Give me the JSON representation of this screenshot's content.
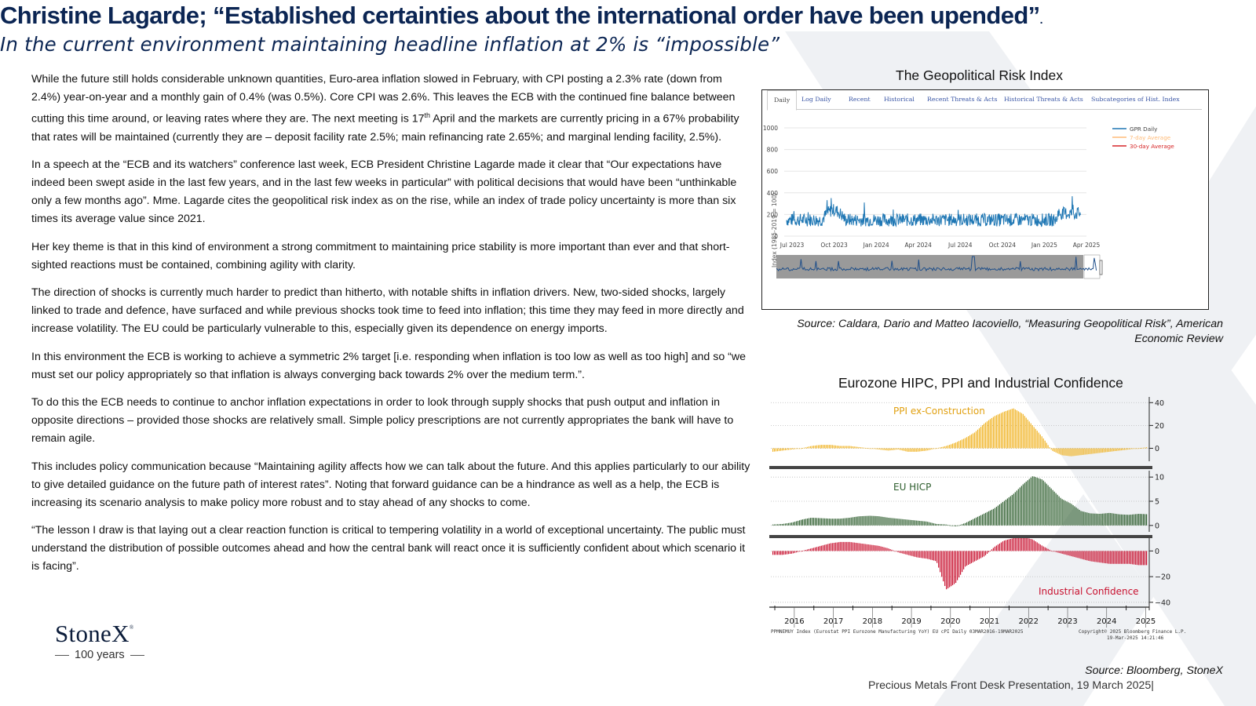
{
  "header": {
    "title": "Christine Lagarde; “Established certainties about the international order have been upended”",
    "title_dot": ".",
    "subtitle": "In the current environment maintaining headline inflation at 2% is “impossible”"
  },
  "body": {
    "p1_a": "While the future still holds considerable unknown quantities, Euro-area inflation slowed in February, with CPI posting a 2.3% rate (down from 2.4%)  year-on-year and a monthly gain of 0.4% (was 0.5%).  Core CPI was 2.6%.  This leaves the ECB with the continued fine balance between cutting this time around, or leaving rates where they are.  The next meeting is 17",
    "p1_sup": "th",
    "p1_b": " April and the markets are currently pricing in a 67% probability that rates will be maintained (currently they are – deposit facility rate 2.5%; main refinancing rate 2.65%; and marginal lending facility, 2.5%).",
    "p2": "In a speech at the “ECB and its watchers” conference last week, ECB President Christine Lagarde made it clear that “Our expectations have indeed been swept aside in the last few years, and in the last few weeks in particular” with political decisions that would have been “unthinkable only a few months ago”.   Mme. Lagarde cites the geopolitical risk index as on the rise, while an index of trade policy uncertainty is more than six times its average value since 2021.",
    "p3": "Her key theme is that in this kind of environment a strong commitment to maintaining price stability is more important than ever and that short-sighted reactions must be contained, combining agility with clarity.",
    "p4": "The direction of shocks is currently much harder to predict than hitherto, with notable shifts in inflation drivers.  New, two-sided shocks, largely linked to trade and defence, have surfaced and while previous shocks took time to feed into inflation; this time they may feed in more directly and increase volatility. The EU could be particularly vulnerable to this, especially given its dependence on energy imports.",
    "p5": "In this environment the ECB is working to achieve a symmetric 2% target [i.e. responding when inflation is too low as well as too high] and so “we must set our policy appropriately so that inflation is always converging back towards 2% over the medium term.”.",
    "p6": "To do this the ECB needs to continue to anchor inflation expectations in order to look through supply shocks that push output and inflation in opposite directions – provided those shocks are relatively small.  Simple policy prescriptions are not currently appropriates the bank will have to remain agile.",
    "p7": "This includes policy communication because “Maintaining agility affects how we can talk about the future. And this applies particularly to our ability to give detailed guidance on the future path of interest rates”.  Noting that forward guidance can be a hindrance as well as a help, the ECB is increasing its scenario analysis to make policy more robust and to stay ahead of any shocks to come.",
    "p8": "“The lesson I draw is that laying out a clear reaction function is critical to tempering volatility in a world of exceptional uncertainty. The public must understand the distribution of possible outcomes ahead and how the central bank will react once it is sufficiently confident about which scenario it is facing”."
  },
  "logo": {
    "word": "StoneX",
    "reg": "®",
    "sub": "100 years"
  },
  "gpr": {
    "title": "The Geopolitical Risk Index",
    "tabs": [
      "Daily",
      "Log Daily",
      "Recent",
      "Historical",
      "Recent Threats & Acts",
      "Historical Threats & Acts",
      "Subcategories of Hist. Index"
    ],
    "ylabel": "Index (1985-2019 = 100)",
    "yticks": [
      "1000",
      "800",
      "600",
      "400",
      "200",
      "0"
    ],
    "xticks": [
      "Jul 2023",
      "Oct 2023",
      "Jan 2024",
      "Apr 2024",
      "Jul 2024",
      "Oct 2024",
      "Jan 2025",
      "Apr 2025"
    ],
    "legend": [
      "GPR Daily",
      "7-day Average",
      "30-day Average"
    ],
    "colors": {
      "daily": "#1f77b4",
      "avg7": "#ffbb78",
      "avg30": "#d62728"
    },
    "source": "Source: Caldara, Dario and Matteo Iacoviello, “Measuring Geopolitical Risk”, American Economic Review"
  },
  "euro": {
    "title": "Eurozone HIPC, PPI and Industrial Confidence",
    "ppi_label": "PPI ex-Construction",
    "hicp_label": "EU HICP",
    "ic_label": "Industrial Confidence",
    "ppi_ticks": [
      "40",
      "20",
      "0"
    ],
    "hicp_ticks": [
      "10",
      "5",
      "0"
    ],
    "ic_ticks": [
      "0",
      "−20",
      "−40"
    ],
    "years": [
      "2016",
      "2017",
      "2018",
      "2019",
      "2020",
      "2021",
      "2022",
      "2023",
      "2024",
      "2025"
    ],
    "footnote_left": "PPMNEMUY Index (Eurostat PPI Eurozone Manufacturing YoY) EU cPI  Daily 03MAR2016-19MAR2025",
    "footnote_right1": "Copyright© 2025 Bloomberg Finance L.P.",
    "footnote_right2": "19-Mar-2025 14:21:46",
    "colors": {
      "ppi": "#f0b323",
      "hicp": "#2e5e2e",
      "ic": "#c8102e"
    },
    "source": "Source: Bloomberg, StoneX"
  },
  "footer": {
    "text": "Precious Metals Front Desk Presentation, 19 March 2025|"
  },
  "chart_data": [
    {
      "type": "line",
      "title": "The Geopolitical Risk Index",
      "ylabel": "Index (1985-2019 = 100)",
      "ylim": [
        0,
        1000
      ],
      "x_range": [
        "2023-07",
        "2025-04"
      ],
      "series": [
        {
          "name": "GPR Daily"
        },
        {
          "name": "7-day Average"
        },
        {
          "name": "30-day Average"
        }
      ],
      "legend": "top-right",
      "grid": true
    },
    {
      "type": "bar",
      "title": "Eurozone HIPC, PPI and Industrial Confidence",
      "categories": [
        "2016",
        "2017",
        "2018",
        "2019",
        "2020",
        "2021",
        "2022",
        "2023",
        "2024",
        "2025"
      ],
      "series": [
        {
          "name": "PPI ex-Construction",
          "values": [
            -2,
            3,
            3,
            1,
            -2,
            8,
            30,
            -2,
            -3,
            0
          ]
        },
        {
          "name": "EU HICP",
          "values": [
            0.5,
            1.5,
            1.8,
            1.2,
            0.3,
            2.6,
            8.5,
            5.5,
            2.3,
            2.3
          ]
        },
        {
          "name": "Industrial Confidence",
          "values": [
            -3,
            6,
            6,
            -5,
            -20,
            12,
            8,
            -6,
            -10,
            -10
          ]
        }
      ],
      "ylim_ppi": [
        -10,
        45
      ],
      "ylim_hicp": [
        -1,
        11
      ],
      "ylim_ic": [
        -45,
        10
      ],
      "grid": true
    }
  ]
}
